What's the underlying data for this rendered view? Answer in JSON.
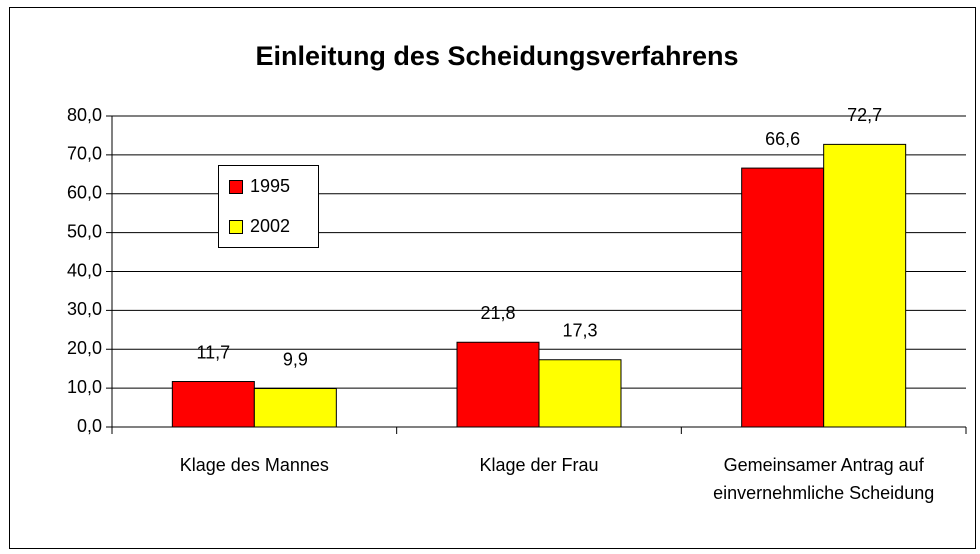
{
  "chart_data": {
    "type": "bar",
    "title": "Einleitung des Scheidungsverfahrens",
    "categories": [
      "Klage des Mannes",
      "Klage der Frau",
      "Gemeinsamer Antrag auf einvernehmliche Scheidung"
    ],
    "series": [
      {
        "name": "1995",
        "color": "#ff0000",
        "values": [
          11.7,
          21.8,
          66.6
        ],
        "value_labels": [
          "11,7",
          "21,8",
          "66,6"
        ]
      },
      {
        "name": "2002",
        "color": "#ffff00",
        "values": [
          9.9,
          17.3,
          72.7
        ],
        "value_labels": [
          "9,9",
          "17,3",
          "72,7"
        ]
      }
    ],
    "ylim": [
      0,
      80
    ],
    "yticks": [
      {
        "value": 0,
        "label": "0,0"
      },
      {
        "value": 10,
        "label": "10,0"
      },
      {
        "value": 20,
        "label": "20,0"
      },
      {
        "value": 30,
        "label": "30,0"
      },
      {
        "value": 40,
        "label": "40,0"
      },
      {
        "value": 50,
        "label": "50,0"
      },
      {
        "value": 60,
        "label": "60,0"
      },
      {
        "value": 70,
        "label": "70,0"
      },
      {
        "value": 80,
        "label": "80,0"
      }
    ],
    "grid": true
  }
}
